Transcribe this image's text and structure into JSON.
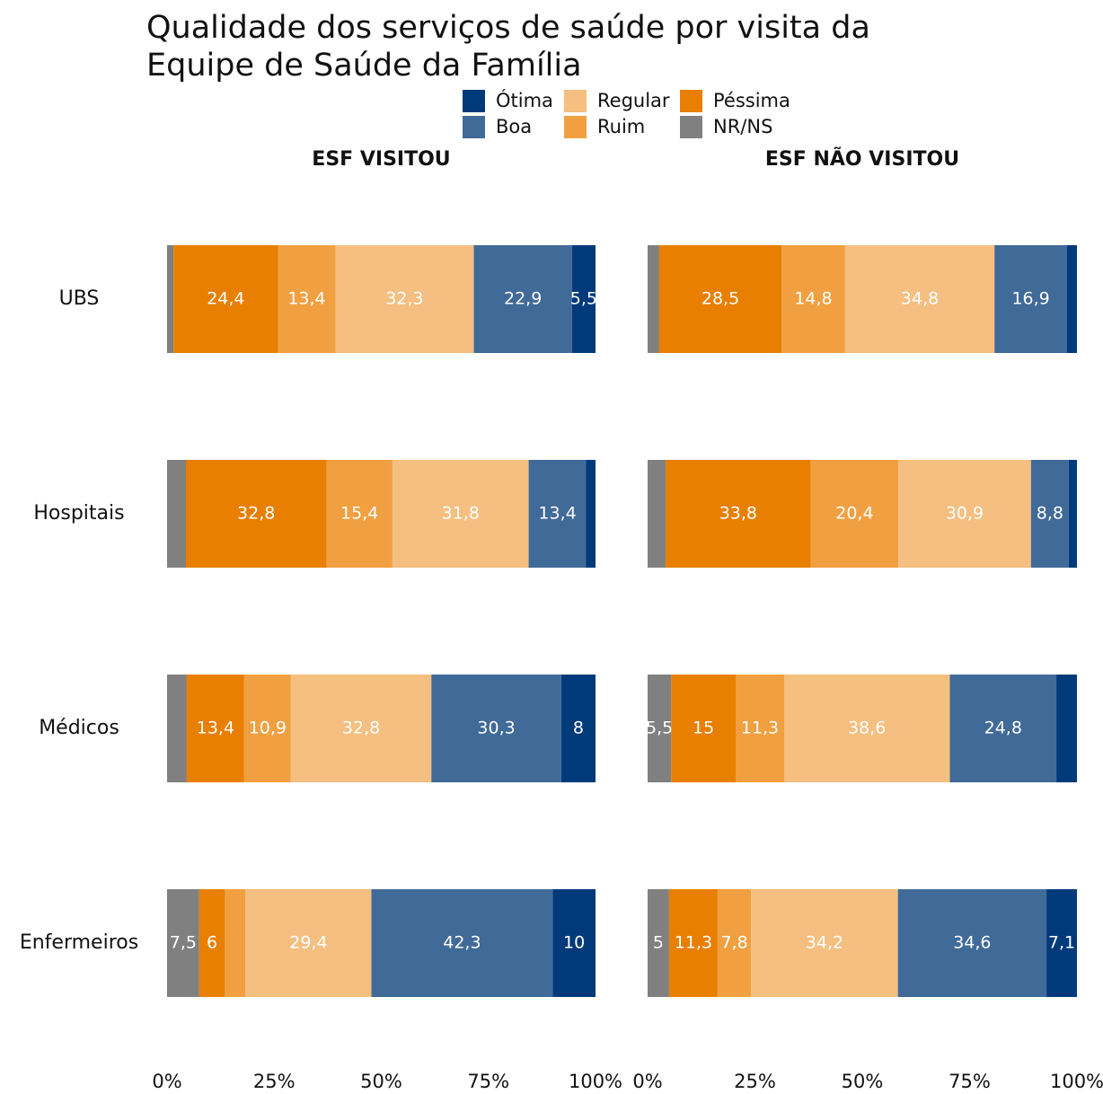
{
  "chart_data": {
    "type": "bar",
    "orientation": "horizontal",
    "stacked": true,
    "title": "Qualidade dos serviços de saúde por visita da\nEquipe de Saúde da Família",
    "panels": [
      "ESF VISITOU",
      "ESF NÃO VISITOU"
    ],
    "categories": [
      "UBS",
      "Hospitais",
      "Médicos",
      "Enfermeiros"
    ],
    "xlim": [
      0,
      100
    ],
    "xticks": [
      {
        "value": 0,
        "label": "0%"
      },
      {
        "value": 25,
        "label": "25%"
      },
      {
        "value": 50,
        "label": "50%"
      },
      {
        "value": 75,
        "label": "75%"
      },
      {
        "value": 100,
        "label": "100%"
      }
    ],
    "grid": false,
    "legend": "top",
    "series": [
      {
        "name": "Ótima",
        "color": "#003a7a",
        "values": [
          [
            5.5,
            2.2,
            8,
            10
          ],
          [
            2.3,
            1.9,
            4.8,
            7.1
          ]
        ],
        "value_labels": [
          [
            "5,5",
            null,
            "8",
            "10"
          ],
          [
            null,
            null,
            null,
            "7,1"
          ]
        ]
      },
      {
        "name": "Boa",
        "color": "#406a98",
        "values": [
          [
            22.9,
            13.4,
            30.3,
            42.3
          ],
          [
            16.9,
            8.8,
            24.8,
            34.6
          ]
        ],
        "value_labels": [
          [
            "22,9",
            "13,4",
            "30,3",
            "42,3"
          ],
          [
            "16,9",
            "8,8",
            "24,8",
            "34,6"
          ]
        ]
      },
      {
        "name": "Regular",
        "color": "#f4bf80",
        "values": [
          [
            32.3,
            31.8,
            32.8,
            29.4
          ],
          [
            34.8,
            30.9,
            38.6,
            34.2
          ]
        ],
        "value_labels": [
          [
            "32,3",
            "31,8",
            "32,8",
            "29,4"
          ],
          [
            "34,8",
            "30,9",
            "38,6",
            "34,2"
          ]
        ]
      },
      {
        "name": "Ruim",
        "color": "#f0a041",
        "values": [
          [
            13.4,
            15.4,
            10.9,
            4.8
          ],
          [
            14.8,
            20.4,
            11.3,
            7.8
          ]
        ],
        "value_labels": [
          [
            "13,4",
            "15,4",
            "10,9",
            null
          ],
          [
            "14,8",
            "20,4",
            "11,3",
            "7,8"
          ]
        ]
      },
      {
        "name": "Péssima",
        "color": "#e87f00",
        "values": [
          [
            24.4,
            32.8,
            13.4,
            6
          ],
          [
            28.5,
            33.8,
            15,
            11.3
          ]
        ],
        "value_labels": [
          [
            "24,4",
            "32,8",
            "13,4",
            "6"
          ],
          [
            "28,5",
            "33,8",
            "15",
            "11,3"
          ]
        ]
      },
      {
        "name": "NR/NS",
        "color": "#808080",
        "values": [
          [
            1.5,
            4.4,
            4.6,
            7.5
          ],
          [
            2.7,
            4.2,
            5.5,
            5
          ]
        ],
        "value_labels": [
          [
            null,
            null,
            null,
            "7,5"
          ],
          [
            null,
            null,
            "5,5",
            "5"
          ]
        ]
      }
    ]
  }
}
